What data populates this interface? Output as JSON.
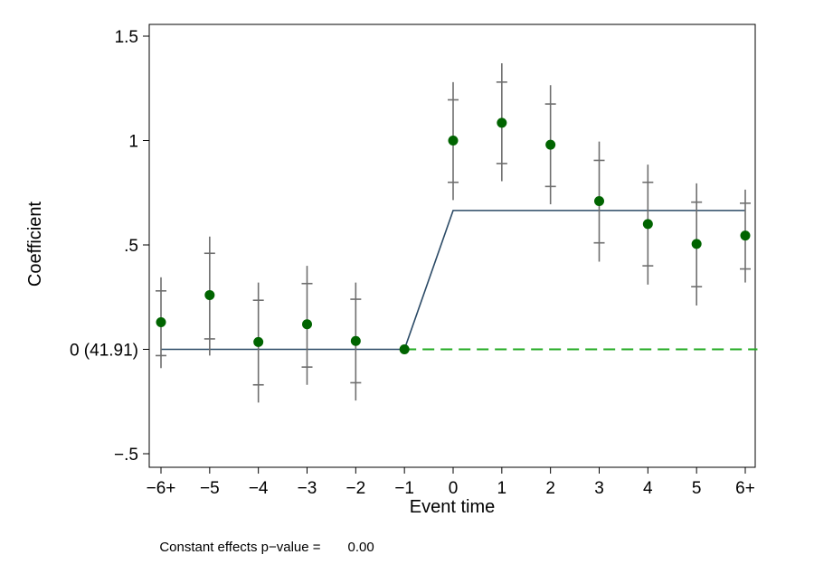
{
  "chart_data": {
    "type": "scatter",
    "title": "",
    "xlabel": "Event time",
    "ylabel": "Coefficient",
    "categories": [
      "−6+",
      "−5",
      "−4",
      "−3",
      "−2",
      "−1",
      "0",
      "1",
      "2",
      "3",
      "4",
      "5",
      "6+"
    ],
    "x": [
      -6,
      -5,
      -4,
      -3,
      -2,
      -1,
      0,
      1,
      2,
      3,
      4,
      5,
      6
    ],
    "yticks": [
      {
        "value": 1.5,
        "label": "1.5"
      },
      {
        "value": 1,
        "label": "1"
      },
      {
        "value": 0.5,
        "label": ".5"
      },
      {
        "value": 0,
        "label": "0 (41.91)"
      },
      {
        "value": -0.5,
        "label": "−.5"
      }
    ],
    "ylim": [
      -0.55,
      1.56
    ],
    "xlim": [
      -6.25,
      6.25
    ],
    "grid": false,
    "series": [
      {
        "type": "scatter",
        "color": "#006400",
        "values": [
          0.13,
          0.26,
          0.035,
          0.12,
          0.04,
          0.0,
          1.0,
          1.085,
          0.98,
          0.71,
          0.6,
          0.505,
          0.545
        ],
        "ci_inner_low": [
          -0.03,
          0.05,
          -0.17,
          -0.085,
          -0.16,
          null,
          0.8,
          0.89,
          0.78,
          0.51,
          0.4,
          0.3,
          0.385
        ],
        "ci_inner_high": [
          0.28,
          0.46,
          0.235,
          0.315,
          0.24,
          null,
          1.195,
          1.28,
          1.175,
          0.905,
          0.8,
          0.705,
          0.7
        ],
        "ci_outer_low": [
          -0.09,
          -0.03,
          -0.255,
          -0.17,
          -0.245,
          null,
          0.715,
          0.805,
          0.695,
          0.42,
          0.31,
          0.21,
          0.32
        ],
        "ci_outer_high": [
          0.345,
          0.54,
          0.32,
          0.4,
          0.32,
          null,
          1.28,
          1.37,
          1.265,
          0.995,
          0.885,
          0.795,
          0.765
        ]
      },
      {
        "type": "line",
        "color": "#2b4a66",
        "points": [
          [
            -6,
            0
          ],
          [
            -1,
            0
          ],
          [
            0,
            0.665
          ],
          [
            6,
            0.665
          ]
        ]
      },
      {
        "type": "line",
        "style": "dashed",
        "color": "#22aa22",
        "points": [
          [
            -1,
            0
          ],
          [
            6.25,
            0
          ]
        ]
      }
    ]
  },
  "footnote": {
    "label": "Constant effects p−value =",
    "value": "0.00"
  }
}
